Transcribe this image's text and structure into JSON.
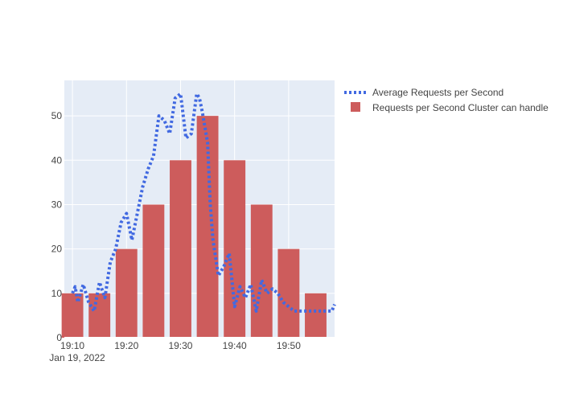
{
  "chart_data": {
    "type": "bar",
    "title": "",
    "xlabel": "",
    "ylabel": "",
    "x_axis": {
      "type": "date",
      "range": [
        "2022-01-19 19:08:30",
        "2022-01-19 19:58:30"
      ],
      "ticks": [
        {
          "value": "2022-01-19 19:10",
          "label": "19:10"
        },
        {
          "value": "2022-01-19 19:20",
          "label": "19:20"
        },
        {
          "value": "2022-01-19 19:30",
          "label": "19:30"
        },
        {
          "value": "2022-01-19 19:40",
          "label": "19:40"
        },
        {
          "value": "2022-01-19 19:50",
          "label": "19:50"
        }
      ],
      "date_label": "Jan 19, 2022"
    },
    "y_axis": {
      "range": [
        0,
        58
      ],
      "ticks": [
        0,
        10,
        20,
        30,
        40,
        50
      ]
    },
    "grid": true,
    "legend_position": "right",
    "background_color": "#e5ecf6",
    "series": [
      {
        "name": "Requests per Second Cluster can handle",
        "kind": "bar",
        "color": "#cd5c5c",
        "x": [
          "2022-01-19 19:10",
          "2022-01-19 19:15",
          "2022-01-19 19:20",
          "2022-01-19 19:25",
          "2022-01-19 19:30",
          "2022-01-19 19:35",
          "2022-01-19 19:40",
          "2022-01-19 19:45",
          "2022-01-19 19:50",
          "2022-01-19 19:55"
        ],
        "values": [
          10,
          10,
          20,
          30,
          40,
          50,
          40,
          30,
          20,
          10
        ]
      },
      {
        "name": "Average Requests per Second",
        "kind": "line",
        "dash": "dot",
        "color": "#4169e1",
        "x": [
          "2022-01-19 19:10",
          "2022-01-19 19:10:30",
          "2022-01-19 19:11",
          "2022-01-19 19:12",
          "2022-01-19 19:13",
          "2022-01-19 19:14",
          "2022-01-19 19:15",
          "2022-01-19 19:16",
          "2022-01-19 19:17",
          "2022-01-19 19:18",
          "2022-01-19 19:19",
          "2022-01-19 19:20",
          "2022-01-19 19:21",
          "2022-01-19 19:22",
          "2022-01-19 19:23",
          "2022-01-19 19:24",
          "2022-01-19 19:25",
          "2022-01-19 19:26",
          "2022-01-19 19:27",
          "2022-01-19 19:28",
          "2022-01-19 19:29",
          "2022-01-19 19:30",
          "2022-01-19 19:31",
          "2022-01-19 19:32",
          "2022-01-19 19:33",
          "2022-01-19 19:33:30",
          "2022-01-19 19:34",
          "2022-01-19 19:35",
          "2022-01-19 19:35:30",
          "2022-01-19 19:36",
          "2022-01-19 19:37",
          "2022-01-19 19:38",
          "2022-01-19 19:39",
          "2022-01-19 19:40",
          "2022-01-19 19:41",
          "2022-01-19 19:42",
          "2022-01-19 19:43",
          "2022-01-19 19:44",
          "2022-01-19 19:45",
          "2022-01-19 19:46",
          "2022-01-19 19:47",
          "2022-01-19 19:48",
          "2022-01-19 19:49",
          "2022-01-19 19:49:30",
          "2022-01-19 19:50",
          "2022-01-19 19:51",
          "2022-01-19 19:52",
          "2022-01-19 19:53",
          "2022-01-19 19:54",
          "2022-01-19 19:55",
          "2022-01-19 19:56",
          "2022-01-19 19:57",
          "2022-01-19 19:58",
          "2022-01-19 19:58:30"
        ],
        "values": [
          10,
          11.5,
          8,
          12,
          8,
          6,
          12.5,
          9,
          17,
          20,
          26,
          28,
          22,
          28,
          34,
          38,
          41,
          50,
          49,
          46,
          54,
          55,
          45,
          46,
          55,
          54,
          51,
          44,
          30,
          22,
          14,
          16,
          19,
          7,
          11.5,
          9,
          12,
          6,
          13,
          10,
          11,
          10,
          8,
          7.5,
          7,
          6,
          6,
          6,
          6,
          6,
          6,
          6,
          6,
          7.5
        ]
      }
    ]
  }
}
